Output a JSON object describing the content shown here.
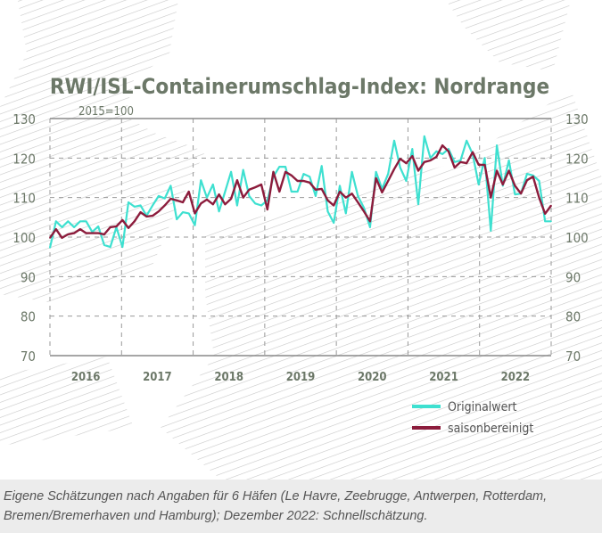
{
  "chart_data": {
    "type": "line",
    "title": "RWI/ISL-Containerumschlag-Index: Nordrange",
    "subtitle": "2015=100",
    "xlabel": "",
    "ylabel": "",
    "x_tick_labels": [
      "2016",
      "2017",
      "2018",
      "2019",
      "2020",
      "2021",
      "2022"
    ],
    "x_range": [
      "2016-01",
      "2022-12"
    ],
    "ylim": [
      70,
      130
    ],
    "y_ticks": [
      70,
      80,
      90,
      100,
      110,
      120,
      130
    ],
    "grid": true,
    "legend_position": "bottom-right",
    "series": [
      {
        "name": "Originalwert",
        "color": "#3ee0d0",
        "values": [
          97.3,
          104,
          102.5,
          104,
          102.5,
          104,
          104,
          101.3,
          102.7,
          98,
          97.5,
          102.5,
          97.5,
          108.8,
          107.7,
          108,
          105.4,
          108,
          110.4,
          109.8,
          113,
          104.5,
          106.3,
          106,
          103,
          114.4,
          110,
          113.3,
          106.5,
          111.5,
          116.5,
          108,
          117,
          110.4,
          108.5,
          108,
          109.3,
          115.3,
          117.8,
          117.8,
          111.5,
          111.5,
          116,
          115.3,
          110.4,
          118,
          106.5,
          103.6,
          113,
          106,
          116.5,
          110.4,
          107.4,
          102.5,
          116.5,
          112.2,
          116,
          124.4,
          117.6,
          114.2,
          122.3,
          108.3,
          125.5,
          120,
          121.7,
          121,
          122.3,
          119,
          119.4,
          124.4,
          121,
          113.3,
          120,
          101.6,
          123.2,
          113,
          119.4,
          110.8,
          111,
          116,
          115.6,
          114.2,
          104,
          104
        ]
      },
      {
        "name": "saisonbereinigt",
        "color": "#8c1c3c",
        "values": [
          99.8,
          102,
          99.8,
          100.7,
          101,
          102,
          101,
          101,
          101,
          100.7,
          102.5,
          102.7,
          104.3,
          102.3,
          104,
          106.3,
          105.2,
          105.4,
          106.5,
          108,
          109.7,
          109.3,
          108.8,
          111.5,
          106,
          108.5,
          109.5,
          108.3,
          110.8,
          108.3,
          109.7,
          114.4,
          110,
          112,
          112.6,
          113.3,
          107,
          116.5,
          111.5,
          116.5,
          115.6,
          114.2,
          114.2,
          113.8,
          112,
          112.2,
          109.3,
          108,
          111.5,
          110,
          111,
          108.8,
          106.5,
          104,
          114.9,
          111.3,
          114.2,
          117.2,
          119.8,
          118.7,
          120.5,
          116.8,
          119,
          119.4,
          120.3,
          123.2,
          121.7,
          117.6,
          119,
          118.7,
          121.5,
          118.3,
          118.3,
          110,
          116.8,
          113.3,
          116.8,
          113,
          111,
          114.4,
          115.3,
          110,
          105.9,
          108
        ]
      }
    ]
  },
  "caption": "Eigene Schätzungen nach Angaben für 6 Häfen (Le Havre, Zeebrugge, Antwerpen, Rotterdam, Bremen/Bremerhaven und Hamburg); Dezember 2022: Schnellschätzung."
}
